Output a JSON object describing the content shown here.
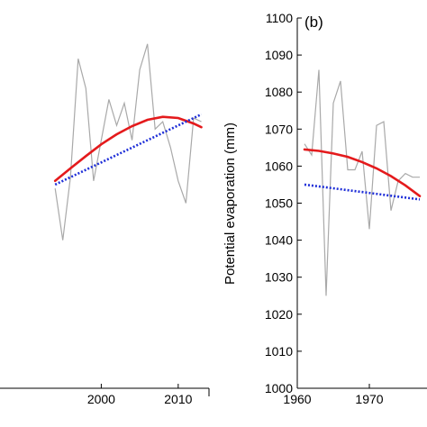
{
  "chart_data": [
    {
      "type": "line",
      "panel": "a",
      "xlim": [
        1984.5,
        2014
      ],
      "ylim": [
        1000,
        1100
      ],
      "x_ticks": [
        2000,
        2010
      ],
      "x_tick_labels": [
        "2000",
        "2010"
      ],
      "grid": false,
      "series": [
        {
          "style": "observed",
          "color": "#a9a9a9",
          "x": [
            1994,
            1995,
            1996,
            1997,
            1998,
            1999,
            2000,
            2001,
            2002,
            2003,
            2004,
            2005,
            2006,
            2007,
            2008,
            2009,
            2010,
            2011,
            2012,
            2013
          ],
          "y": [
            1054,
            1040,
            1057,
            1089,
            1081,
            1056,
            1067,
            1078,
            1071,
            1077,
            1067,
            1086,
            1093,
            1070,
            1072,
            1065,
            1056,
            1050,
            1073,
            1072
          ]
        },
        {
          "style": "polynomial-fit",
          "color": "#e41a1c",
          "x": [
            1994,
            1996,
            1998,
            2000,
            2002,
            2004,
            2006,
            2008,
            2010,
            2012,
            2013
          ],
          "y": [
            1056,
            1059.4,
            1062.7,
            1065.9,
            1068.6,
            1070.8,
            1072.5,
            1073.3,
            1073,
            1071.5,
            1070.5
          ]
        },
        {
          "style": "linear-trend",
          "color": "#1f2fd8",
          "x": [
            1994,
            2013
          ],
          "y": [
            1055,
            1074
          ]
        }
      ]
    },
    {
      "type": "line",
      "panel": "b",
      "panel_label": "(b)",
      "ylabel": "Potential evaporation (mm)",
      "xlim": [
        1960,
        1978
      ],
      "ylim": [
        1000,
        1100
      ],
      "x_ticks": [
        1960,
        1970
      ],
      "x_tick_labels": [
        "1960",
        "1970"
      ],
      "y_ticks": [
        1000,
        1010,
        1020,
        1030,
        1040,
        1050,
        1060,
        1070,
        1080,
        1090,
        1100
      ],
      "y_tick_labels": [
        "1000",
        "1010",
        "1020",
        "1030",
        "1040",
        "1050",
        "1060",
        "1070",
        "1080",
        "1090",
        "1100"
      ],
      "grid": false,
      "series": [
        {
          "style": "observed",
          "color": "#a9a9a9",
          "x": [
            1961,
            1962,
            1963,
            1964,
            1965,
            1966,
            1967,
            1968,
            1969,
            1970,
            1971,
            1972,
            1973,
            1974,
            1975,
            1976,
            1977
          ],
          "y": [
            1066,
            1063,
            1086,
            1025,
            1077,
            1083,
            1059,
            1059,
            1064,
            1043,
            1071,
            1072,
            1048,
            1056,
            1058,
            1057,
            1057
          ]
        },
        {
          "style": "polynomial-fit",
          "color": "#e41a1c",
          "x": [
            1961,
            1963,
            1965,
            1967,
            1969,
            1971,
            1973,
            1975,
            1977
          ],
          "y": [
            1064.5,
            1064.1,
            1063.4,
            1062.5,
            1061.1,
            1059.4,
            1057.3,
            1054.8,
            1051.9
          ]
        },
        {
          "style": "linear-trend",
          "color": "#1f2fd8",
          "x": [
            1961,
            1977
          ],
          "y": [
            1055,
            1051
          ]
        }
      ]
    }
  ]
}
